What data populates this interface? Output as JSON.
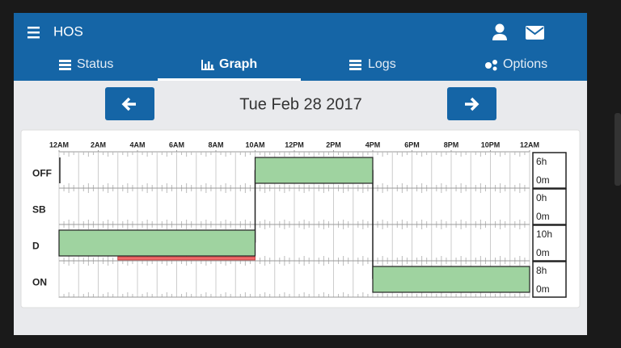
{
  "header": {
    "title": "HOS"
  },
  "tabs": [
    "Status",
    "Graph",
    "Logs",
    "Options"
  ],
  "date": "Tue Feb 28 2017",
  "graph": {
    "xlim": [
      0,
      24
    ],
    "xticks": [
      {
        "value": 0,
        "label": "12AM"
      },
      {
        "value": 2,
        "label": "2AM"
      },
      {
        "value": 4,
        "label": "4AM"
      },
      {
        "value": 6,
        "label": "6AM"
      },
      {
        "value": 8,
        "label": "8AM"
      },
      {
        "value": 10,
        "label": "10AM"
      },
      {
        "value": 12,
        "label": "12PM"
      },
      {
        "value": 14,
        "label": "2PM"
      },
      {
        "value": 16,
        "label": "4PM"
      },
      {
        "value": 18,
        "label": "6PM"
      },
      {
        "value": 20,
        "label": "8PM"
      },
      {
        "value": 22,
        "label": "10PM"
      },
      {
        "value": 24,
        "label": "12AM"
      }
    ],
    "statuses": [
      {
        "name": "OFF",
        "hours": "6h",
        "minutes": "0m",
        "segments": [
          [
            10,
            16
          ]
        ]
      },
      {
        "name": "SB",
        "hours": "0h",
        "minutes": "0m",
        "segments": []
      },
      {
        "name": "D",
        "hours": "10h",
        "minutes": "0m",
        "segments": [
          [
            0,
            10
          ]
        ],
        "violations": [
          [
            3,
            10
          ]
        ]
      },
      {
        "name": "ON",
        "hours": "8h",
        "minutes": "0m",
        "segments": [
          [
            16,
            24
          ]
        ]
      }
    ]
  }
}
